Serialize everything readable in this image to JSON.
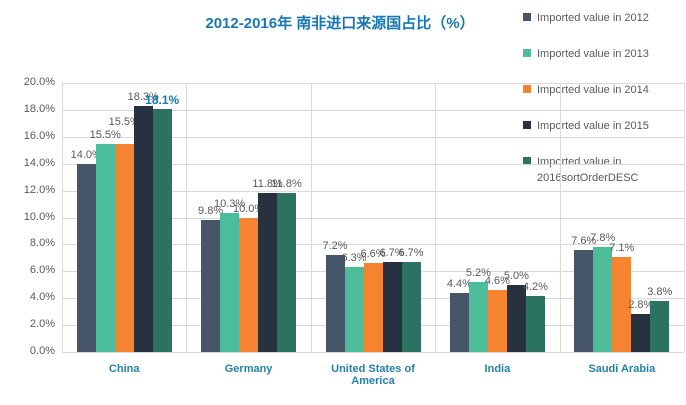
{
  "chart_data": {
    "type": "bar",
    "title": "2012-2016年 南非进口来源国占比（%）",
    "categories": [
      "China",
      "Germany",
      "United States of America",
      "India",
      "Saudi Arabia"
    ],
    "series": [
      {
        "name": "Imported value in 2012",
        "color": "#475569",
        "values": [
          14.0,
          9.8,
          7.2,
          4.4,
          7.6
        ]
      },
      {
        "name": "Imported value in 2013",
        "color": "#4bbd9a",
        "values": [
          15.5,
          10.3,
          6.3,
          5.2,
          7.8
        ]
      },
      {
        "name": "Imported value in 2014",
        "color": "#f6832f",
        "values": [
          15.5,
          10.0,
          6.6,
          4.6,
          7.1
        ]
      },
      {
        "name": "Imported value in 2015",
        "color": "#27313f",
        "values": [
          18.3,
          11.8,
          6.7,
          5.0,
          2.8
        ]
      },
      {
        "name": "Imported value in 2016sortOrderDESC",
        "color": "#2b7360",
        "values": [
          18.1,
          11.8,
          6.7,
          4.2,
          3.8
        ]
      }
    ],
    "ylim": [
      0,
      20
    ],
    "ytick_step": 2,
    "ytick_labels": [
      "0.0%",
      "2.0%",
      "4.0%",
      "6.0%",
      "8.0%",
      "10.0%",
      "12.0%",
      "14.0%",
      "16.0%",
      "18.0%",
      "20.0%"
    ],
    "data_label_suffix": "%",
    "grid": true,
    "legend_position": "right",
    "highlighted_label": {
      "category_index": 0,
      "series_index": 4,
      "text": "18.1%"
    }
  },
  "styles": {
    "title_color": "#1878b2",
    "category_label_color": "#2581a8",
    "axis_label_color": "#595959",
    "data_label_color": "#595959",
    "legend_text_color": "#595959",
    "grid_color": "#d9d9d9",
    "highlight_label_color": "#1678b6",
    "background": "#ffffff"
  }
}
